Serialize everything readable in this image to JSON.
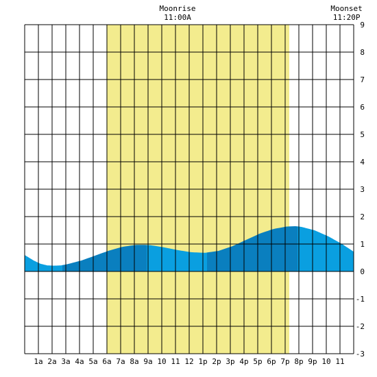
{
  "chart_data": {
    "type": "area",
    "title": "",
    "xlabel": "",
    "ylabel": "",
    "x_ticks": [
      "1a",
      "2a",
      "3a",
      "4a",
      "5a",
      "6a",
      "7a",
      "8a",
      "9a",
      "10",
      "11",
      "12",
      "1p",
      "2p",
      "3p",
      "4p",
      "5p",
      "6p",
      "7p",
      "8p",
      "9p",
      "10",
      "11"
    ],
    "xlim": [
      -0.15,
      23.85
    ],
    "y_ticks": [
      "9",
      "8",
      "7",
      "6",
      "5",
      "4",
      "3",
      "2",
      "1",
      "0",
      "-1",
      "-2",
      "-3"
    ],
    "ylim": [
      -3,
      9
    ],
    "grid": true,
    "daylight": {
      "start_hour": 5.82,
      "end_hour": 19.15,
      "color": "#f3ec8e"
    },
    "events": [
      {
        "label": "Moonrise",
        "time": "11:00A",
        "hour": 11.0
      },
      {
        "label": "Moonset",
        "time": "11:20P",
        "hour": 23.33
      }
    ],
    "tide_series": {
      "name": "",
      "hours": [
        -0.15,
        0.5,
        1.0,
        1.5,
        2.0,
        2.5,
        3.0,
        4.0,
        5.0,
        6.0,
        7.0,
        8.0,
        8.6,
        9.0,
        10.0,
        11.0,
        12.0,
        13.0,
        14.0,
        15.0,
        16.0,
        17.0,
        18.0,
        19.0,
        19.6,
        20.0,
        21.0,
        22.0,
        23.0,
        23.85
      ],
      "heights": [
        0.6,
        0.4,
        0.28,
        0.22,
        0.21,
        0.22,
        0.27,
        0.4,
        0.58,
        0.76,
        0.9,
        0.97,
        0.97,
        0.96,
        0.88,
        0.78,
        0.7,
        0.68,
        0.75,
        0.92,
        1.15,
        1.38,
        1.55,
        1.64,
        1.65,
        1.63,
        1.5,
        1.28,
        1.0,
        0.72
      ],
      "segments": [
        {
          "start_hour": -0.15,
          "end_hour": 2.6,
          "color": "#0a9fe0"
        },
        {
          "start_hour": 2.6,
          "end_hour": 8.75,
          "color": "#0a7fbf"
        },
        {
          "start_hour": 8.75,
          "end_hour": 13.15,
          "color": "#0a9fe0"
        },
        {
          "start_hour": 13.15,
          "end_hour": 19.75,
          "color": "#0a7fbf"
        },
        {
          "start_hour": 19.75,
          "end_hour": 23.85,
          "color": "#0a9fe0"
        }
      ]
    },
    "colors": {
      "grid": "#000000",
      "background": "#ffffff"
    }
  }
}
